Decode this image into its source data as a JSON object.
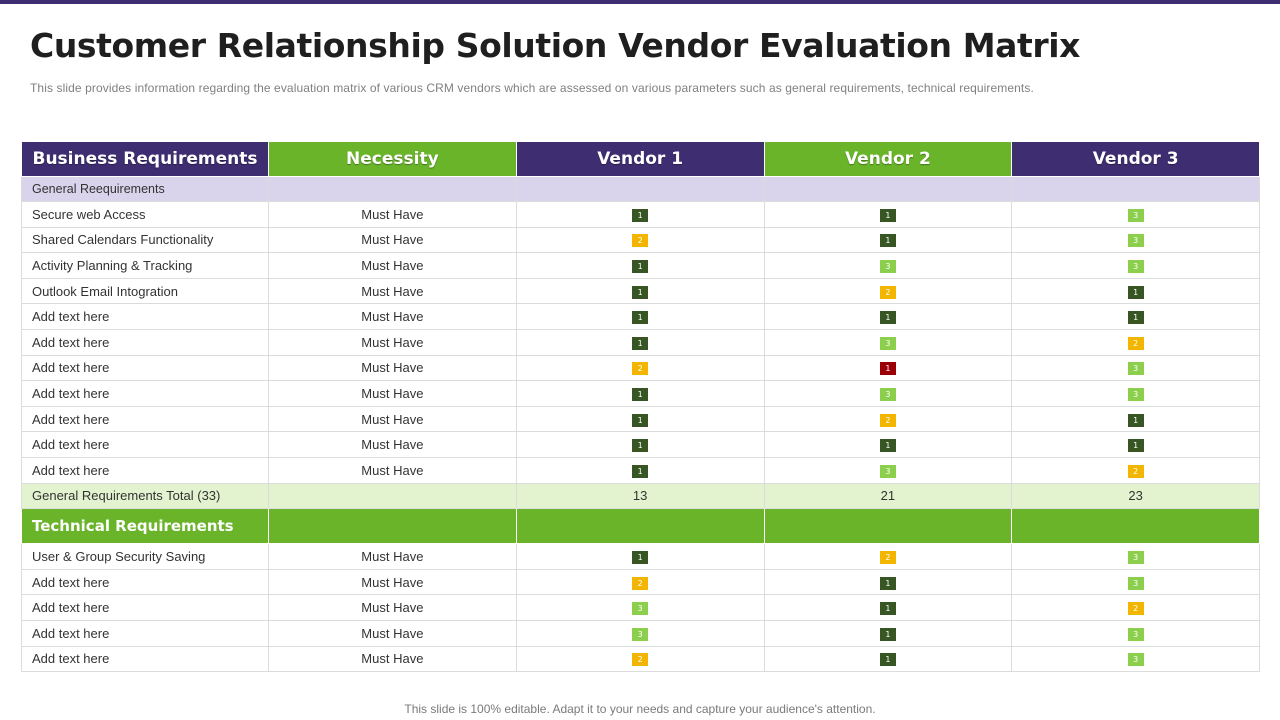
{
  "title": "Customer Relationship Solution Vendor Evaluation Matrix",
  "subtitle": "This slide provides  information  regarding  the evaluation  matrix of various  CRM vendors  which are assessed on various  parameters  such as general  requirements,  technical requirements.",
  "footer": "This slide is 100% editable. Adapt it to your needs and capture your audience's attention.",
  "colors": {
    "header_purple": "#3f2d72",
    "header_green": "#6ab42a",
    "score_1": "#375623",
    "score_2": "#f2b600",
    "score_3": "#8ccf4d",
    "score_1_alert": "#9c0006"
  },
  "headers": [
    "Business Requirements",
    "Necessity",
    "Vendor 1",
    "Vendor 2",
    "Vendor 3"
  ],
  "general": {
    "label": "General  Reequirements",
    "rows": [
      {
        "name": "Secure web Access",
        "necessity": "Must Have",
        "scores": [
          "1",
          "1",
          "3"
        ]
      },
      {
        "name": "Shared Calendars  Functionality",
        "necessity": "Must Have",
        "scores": [
          "2",
          "1",
          "3"
        ]
      },
      {
        "name": "Activity Planning & Tracking",
        "necessity": "Must Have",
        "scores": [
          "1",
          "3",
          "3"
        ]
      },
      {
        "name": "Outlook Email Intogration",
        "necessity": "Must Have",
        "scores": [
          "1",
          "2",
          "1"
        ]
      },
      {
        "name": "Add text here",
        "necessity": "Must Have",
        "scores": [
          "1",
          "1",
          "1"
        ]
      },
      {
        "name": "Add text here",
        "necessity": "Must Have",
        "scores": [
          "1",
          "3",
          "2"
        ]
      },
      {
        "name": "Add text here",
        "necessity": "Must Have",
        "scores": [
          "2",
          "1",
          "3"
        ],
        "alert_vendor_index": 1
      },
      {
        "name": "Add text here",
        "necessity": "Must Have",
        "scores": [
          "1",
          "3",
          "3"
        ]
      },
      {
        "name": "Add text here",
        "necessity": "Must Have",
        "scores": [
          "1",
          "2",
          "1"
        ]
      },
      {
        "name": "Add text here",
        "necessity": "Must Have",
        "scores": [
          "1",
          "1",
          "1"
        ]
      },
      {
        "name": "Add text here",
        "necessity": "Must Have",
        "scores": [
          "1",
          "3",
          "2"
        ]
      }
    ],
    "total": {
      "label": "General  Requirements  Total (33)",
      "values": [
        "13",
        "21",
        "23"
      ]
    }
  },
  "technical": {
    "label": "Technical Requirements",
    "rows": [
      {
        "name": "User & Group  Security Saving",
        "necessity": "Must Have",
        "scores": [
          "1",
          "2",
          "3"
        ]
      },
      {
        "name": "Add text here",
        "necessity": "Must Have",
        "scores": [
          "2",
          "1",
          "3"
        ]
      },
      {
        "name": "Add text here",
        "necessity": "Must Have",
        "scores": [
          "3",
          "1",
          "2"
        ]
      },
      {
        "name": "Add text here",
        "necessity": "Must Have",
        "scores": [
          "3",
          "1",
          "3"
        ]
      },
      {
        "name": "Add text here",
        "necessity": "Must Have",
        "scores": [
          "2",
          "1",
          "3"
        ]
      }
    ]
  }
}
